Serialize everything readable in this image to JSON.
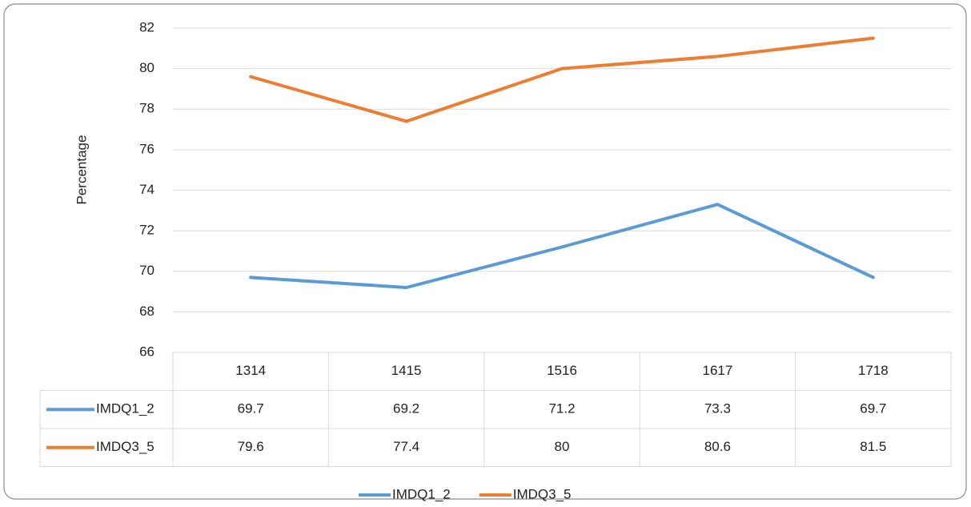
{
  "chart_data": {
    "type": "line",
    "y_label": "Percentage",
    "categories": [
      "1314",
      "1415",
      "1516",
      "1617",
      "1718"
    ],
    "series": [
      {
        "name": "IMDQ1_2",
        "color": "#5b9bd5",
        "values": [
          69.7,
          69.2,
          71.2,
          73.3,
          69.7
        ]
      },
      {
        "name": "IMDQ3_5",
        "color": "#ed7d31",
        "values": [
          79.6,
          77.4,
          80,
          80.6,
          81.5
        ]
      }
    ],
    "ylim": [
      66,
      82
    ],
    "yticks": [
      66,
      68,
      70,
      72,
      74,
      76,
      78,
      80,
      82
    ],
    "grid": true,
    "data_table": true,
    "legend": "bottom"
  }
}
